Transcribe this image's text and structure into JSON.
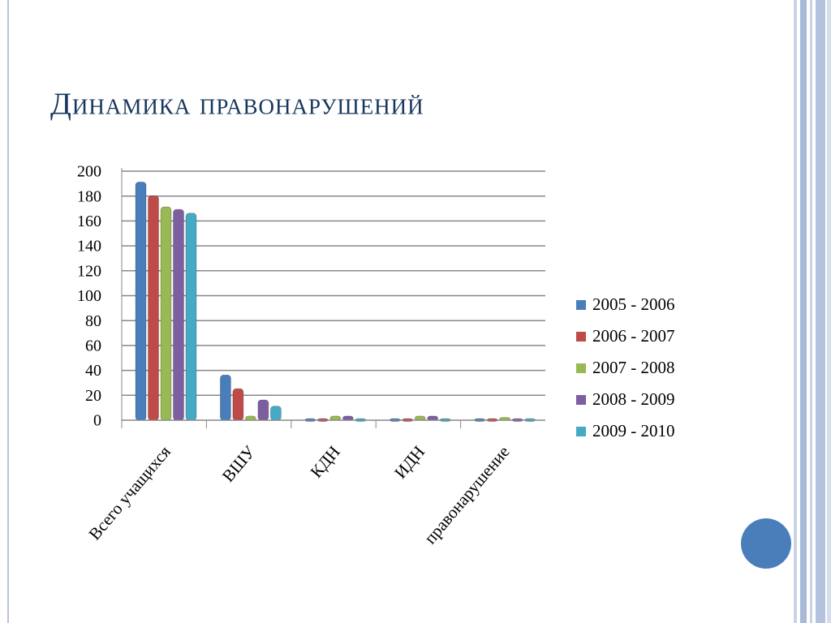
{
  "chart_data": {
    "type": "bar",
    "title": "Динамика правонарушений",
    "categories": [
      "Всего учащихся",
      "ВШУ",
      "КДН",
      "ИДН",
      "правонарушение"
    ],
    "series": [
      {
        "name": "2005 - 2006",
        "color": "#4a7ebb",
        "values": [
          190,
          35,
          0,
          0,
          0
        ]
      },
      {
        "name": "2006 - 2007",
        "color": "#be4b48",
        "values": [
          179,
          24,
          0,
          0,
          0
        ]
      },
      {
        "name": "2007 - 2008",
        "color": "#98b954",
        "values": [
          170,
          2,
          2,
          2,
          1
        ]
      },
      {
        "name": "2008 - 2009",
        "color": "#7d5fa0",
        "values": [
          168,
          15,
          2,
          2,
          0
        ]
      },
      {
        "name": "2009 - 2010",
        "color": "#46aac5",
        "values": [
          165,
          10,
          0,
          0,
          0
        ]
      }
    ],
    "ylim": [
      0,
      200
    ],
    "yticks": [
      0,
      20,
      40,
      60,
      80,
      100,
      120,
      140,
      160,
      180,
      200
    ],
    "grid": true,
    "legend": "right"
  }
}
